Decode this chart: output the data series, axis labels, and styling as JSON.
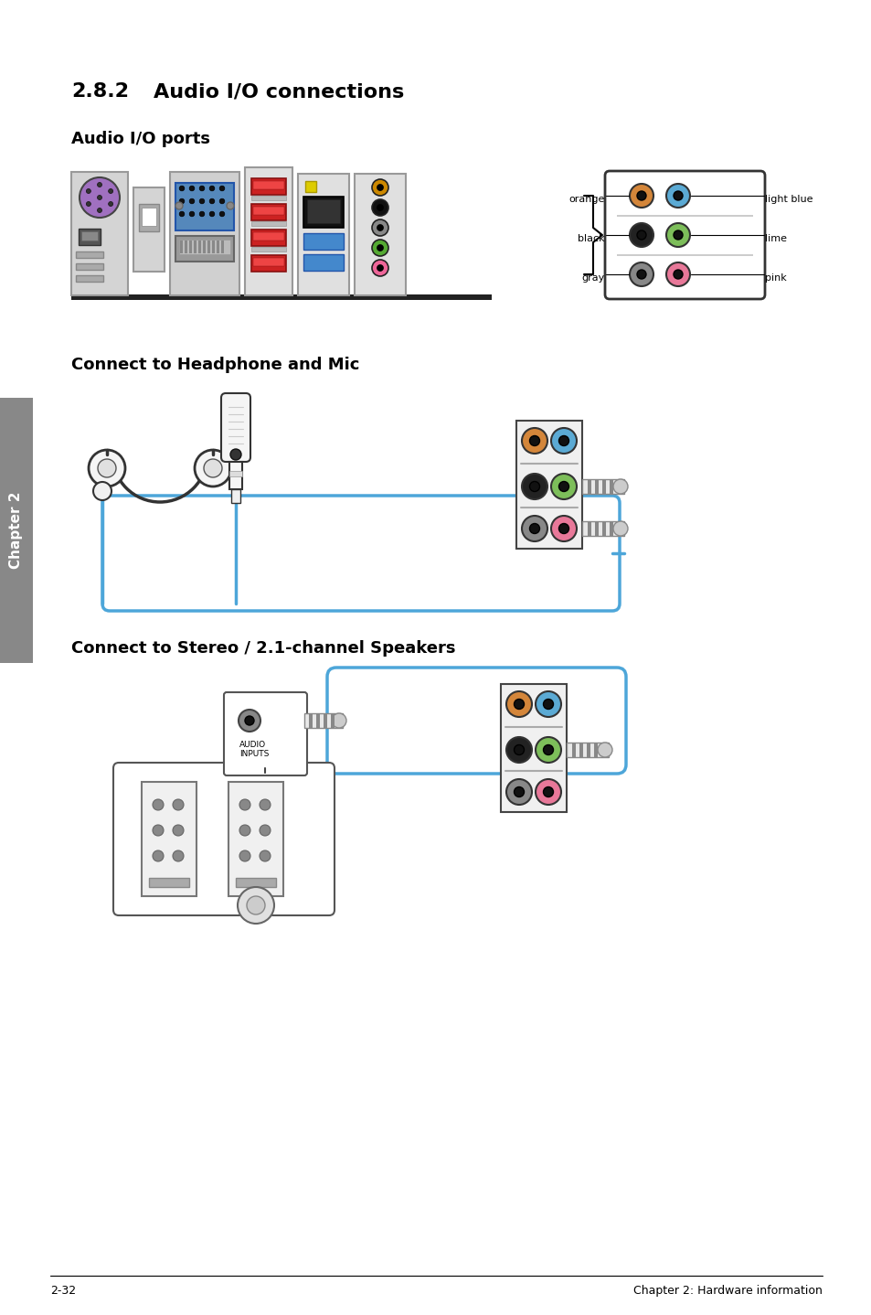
{
  "title_num": "2.8.2",
  "title_text": "Audio I/O connections",
  "subtitle": "Audio I/O ports",
  "section2_title": "Connect to Headphone and Mic",
  "section3_title": "Connect to Stereo / 2.1-channel Speakers",
  "footer_left": "2-32",
  "footer_right": "Chapter 2: Hardware information",
  "bg_color": "#ffffff",
  "text_color": "#000000",
  "chapter_tab_color": "#808080",
  "chapter_tab_text": "Chapter 2",
  "port_colors_left": [
    "#d4863a",
    "#222222",
    "#888888"
  ],
  "port_colors_right": [
    "#5baad4",
    "#7dbe5a",
    "#e87899"
  ],
  "labels_left": [
    "orange",
    "black",
    "gray"
  ],
  "labels_right": [
    "light blue",
    "lime",
    "pink"
  ],
  "blue_line_color": "#4da6d9",
  "sidebar_color": "#888888"
}
